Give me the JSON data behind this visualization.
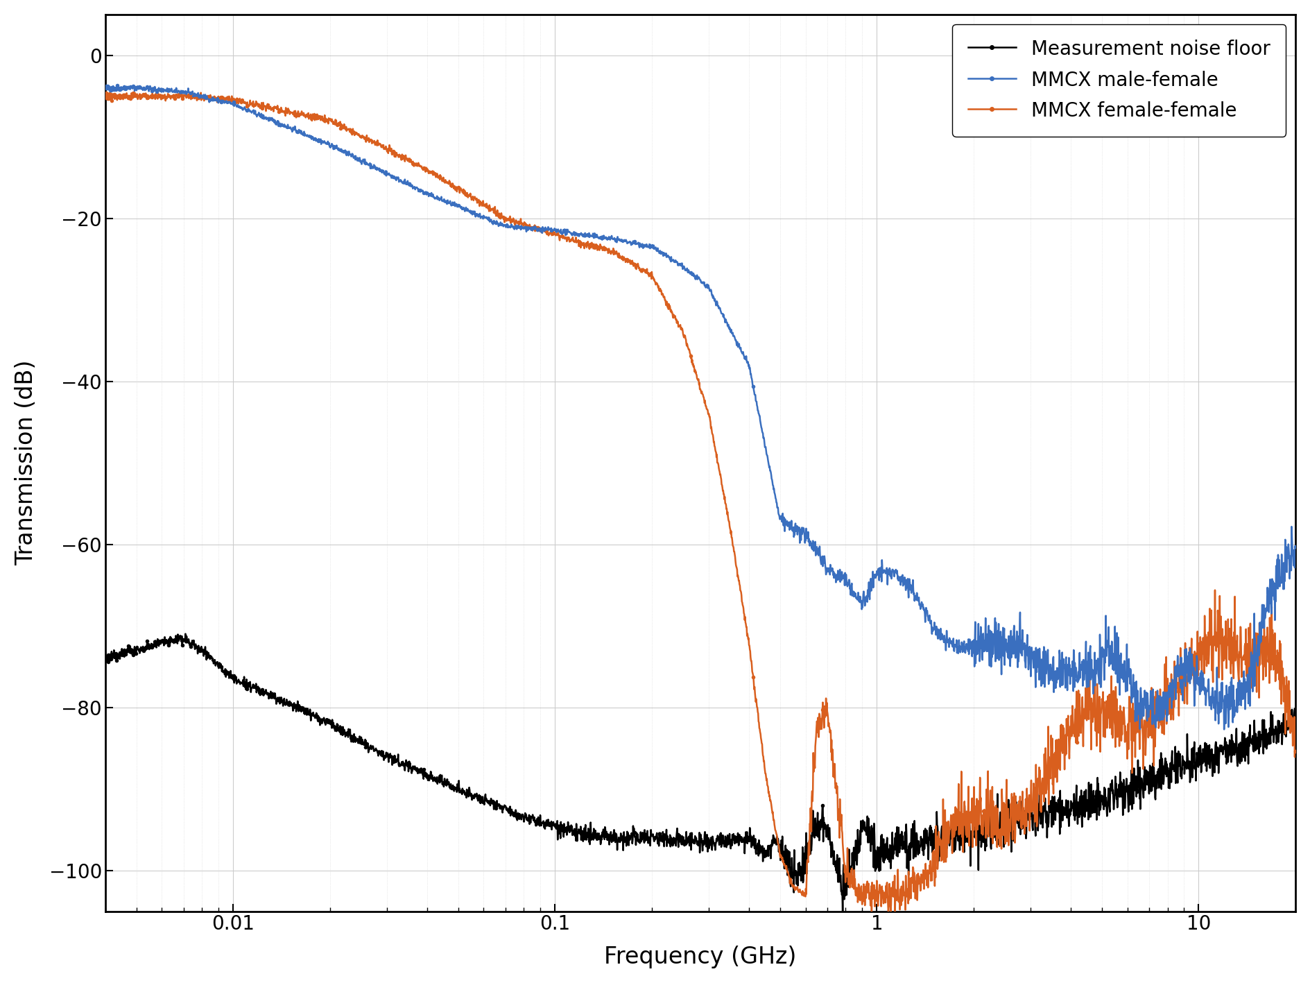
{
  "title": "",
  "xlabel": "Frequency (GHz)",
  "ylabel": "Transmission (dB)",
  "xlim": [
    0.004,
    20
  ],
  "ylim": [
    -105,
    5
  ],
  "yticks": [
    0,
    -20,
    -40,
    -60,
    -80,
    -100
  ],
  "grid_color": "#b0b0b0",
  "background_color": "#ffffff",
  "legend_entries": [
    "Measurement noise floor",
    "MMCX male-female",
    "MMCX female-female"
  ],
  "noise_color": "#000000",
  "mf_color": "#3a6fbf",
  "ff_color": "#d95f1e",
  "linewidth": 1.8,
  "marker_size": 4
}
